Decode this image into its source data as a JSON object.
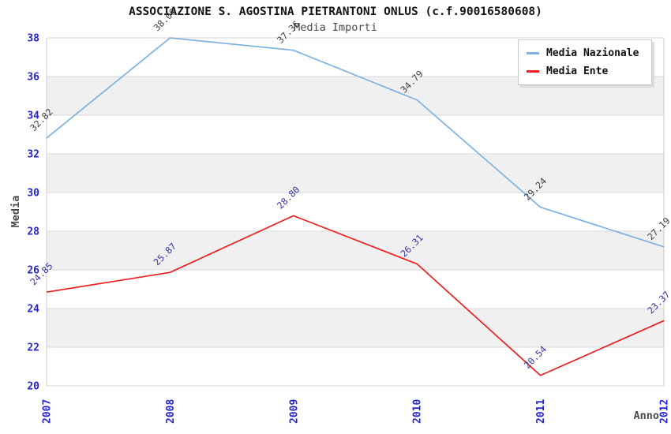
{
  "title": "ASSOCIAZIONE S. AGOSTINA PIETRANTONI ONLUS (c.f.90016580608)",
  "subtitle": "Media Importi",
  "chart_data": {
    "type": "line",
    "x": [
      "2007",
      "2008",
      "2009",
      "2010",
      "2011",
      "2012"
    ],
    "series": [
      {
        "name": "Media Nazionale",
        "color": "#7fb1e0",
        "label_color": "#3f3f3f",
        "values": [
          32.82,
          38.0,
          37.36,
          34.79,
          29.24,
          27.19
        ]
      },
      {
        "name": "Media Ente",
        "color": "#ee1e1e",
        "label_color": "#3636a3",
        "values": [
          24.85,
          25.87,
          28.8,
          26.31,
          20.54,
          23.37
        ]
      }
    ],
    "xlabel": "Anno",
    "ylabel": "Media",
    "ylim": [
      20,
      38
    ],
    "ytick_step": 2,
    "yticks": [
      20,
      22,
      24,
      26,
      28,
      30,
      32,
      34,
      36,
      38
    ],
    "grid": "horizontal-bands",
    "band_color": "#f0f0f0",
    "gridline_color": "#d9d9d9",
    "border_color": "#cccccc",
    "axis_tick_color": "#2626cc",
    "legend_position": "top-right"
  }
}
